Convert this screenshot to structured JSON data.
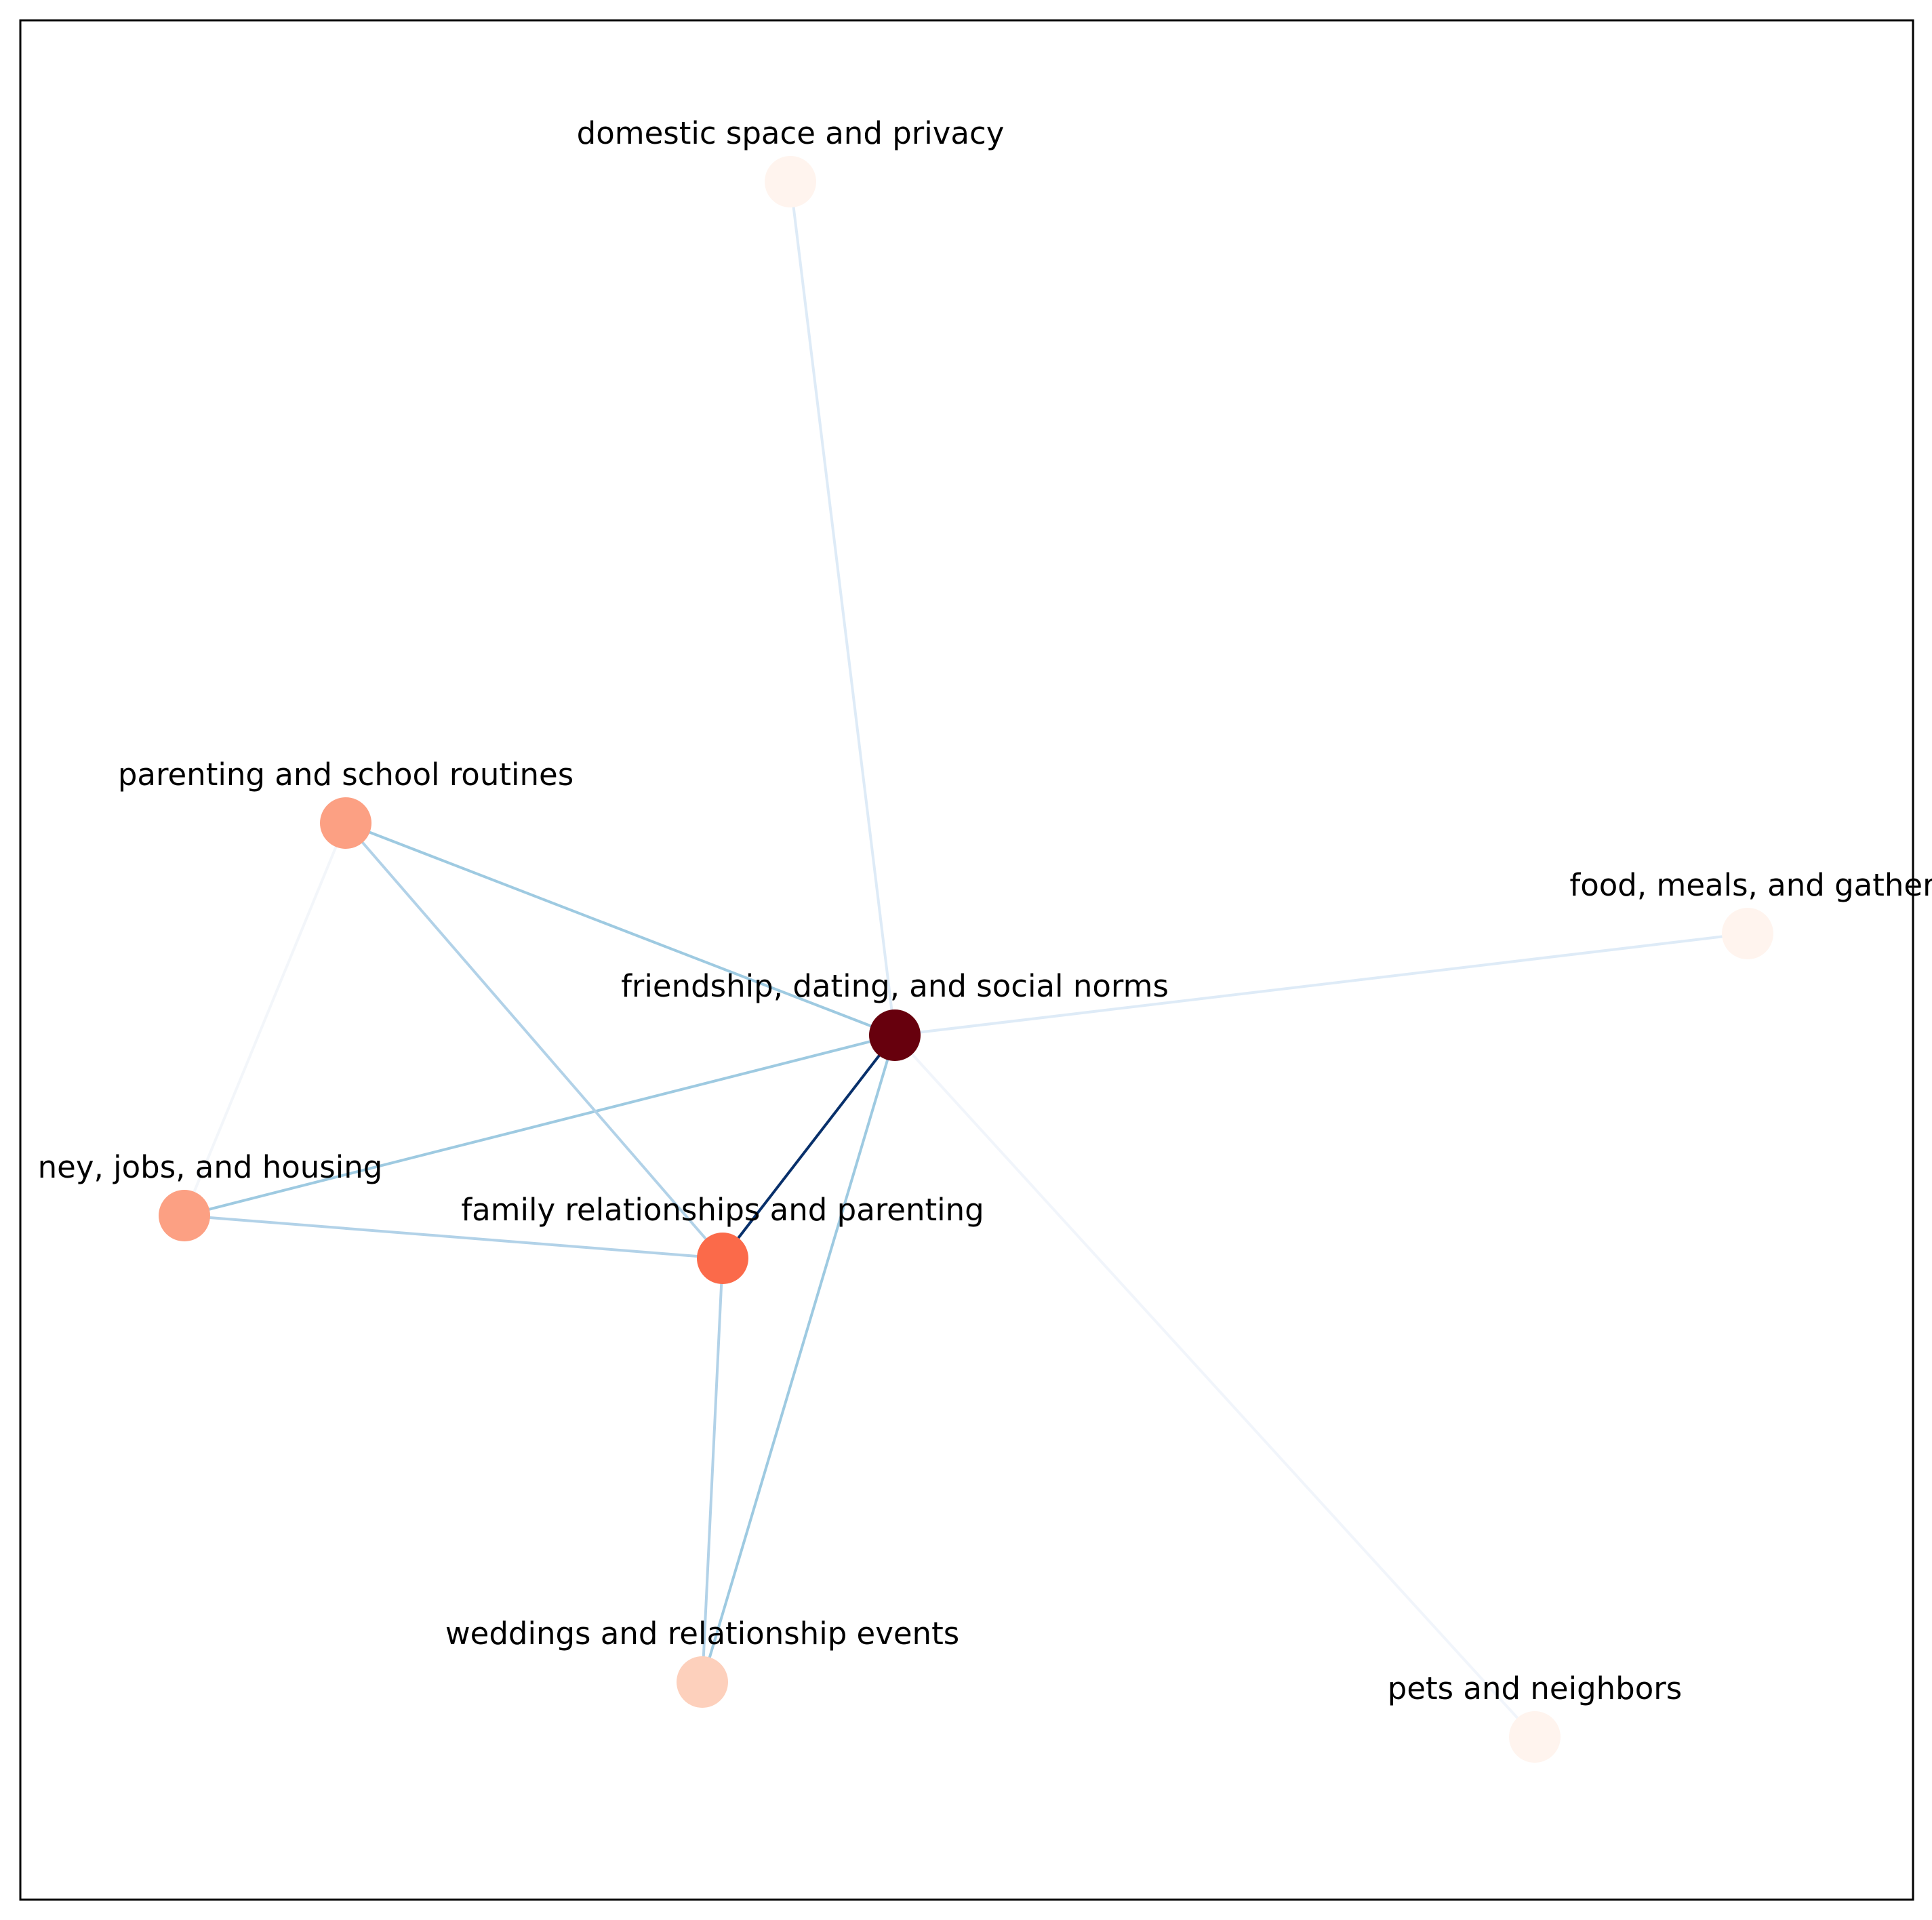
{
  "graph": {
    "nodes": [
      {
        "id": "friendship",
        "label": "friendship, dating, and social norms",
        "color": "#67000d"
      },
      {
        "id": "family",
        "label": "family relationships and parenting",
        "color": "#fb6a4a"
      },
      {
        "id": "parenting_school",
        "label": "parenting and school routines",
        "color": "#fca083"
      },
      {
        "id": "money",
        "label": "ney, jobs, and housing",
        "color": "#fca083"
      },
      {
        "id": "weddings",
        "label": "weddings and relationship events",
        "color": "#fdd0bc"
      },
      {
        "id": "domestic",
        "label": "domestic space and privacy",
        "color": "#fff4ee"
      },
      {
        "id": "food",
        "label": "food, meals, and gather",
        "color": "#fff4ee"
      },
      {
        "id": "pets",
        "label": "pets and neighbors",
        "color": "#fff4ee"
      }
    ],
    "edges": [
      {
        "source": "friendship",
        "target": "family",
        "color": "#08306b"
      },
      {
        "source": "friendship",
        "target": "parenting_school",
        "color": "#9ecae1"
      },
      {
        "source": "friendship",
        "target": "money",
        "color": "#9ecae1"
      },
      {
        "source": "friendship",
        "target": "weddings",
        "color": "#9ecae1"
      },
      {
        "source": "friendship",
        "target": "domestic",
        "color": "#deebf7"
      },
      {
        "source": "friendship",
        "target": "food",
        "color": "#deebf7"
      },
      {
        "source": "friendship",
        "target": "pets",
        "color": "#f1f5fb"
      },
      {
        "source": "parenting_school",
        "target": "family",
        "color": "#b2d2e8"
      },
      {
        "source": "parenting_school",
        "target": "money",
        "color": "#f3f6fa"
      },
      {
        "source": "money",
        "target": "family",
        "color": "#b2d2e8"
      },
      {
        "source": "family",
        "target": "weddings",
        "color": "#b2d2e8"
      }
    ]
  }
}
